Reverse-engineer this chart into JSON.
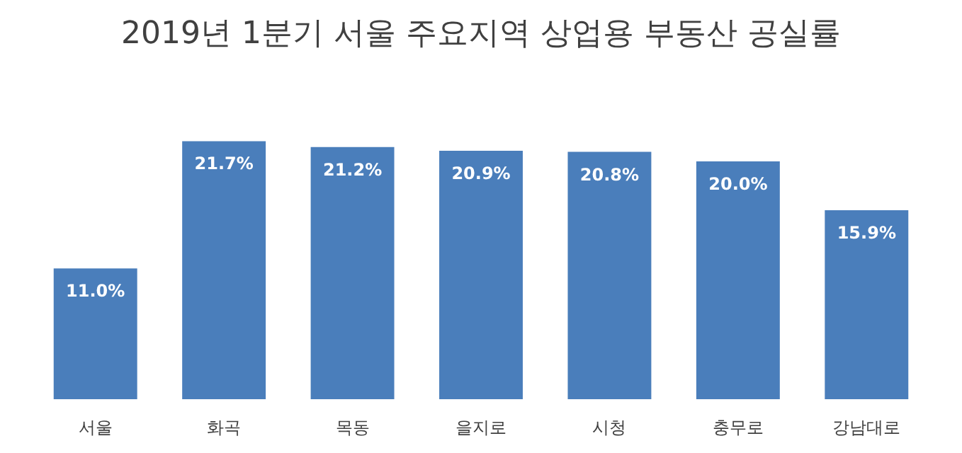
{
  "chart_data": {
    "type": "bar",
    "title": "2019년 1분기 서울 주요지역 상업용 부동산 공실률",
    "categories": [
      "서울",
      "화곡",
      "목동",
      "을지로",
      "시청",
      "충무로",
      "강남대로"
    ],
    "values": [
      11.0,
      21.7,
      21.2,
      20.9,
      20.8,
      20.0,
      15.9
    ],
    "value_labels": [
      "11.0%",
      "21.7%",
      "21.2%",
      "20.9%",
      "20.8%",
      "20.0%",
      "15.9%"
    ],
    "color": "#4a7ebb"
  }
}
